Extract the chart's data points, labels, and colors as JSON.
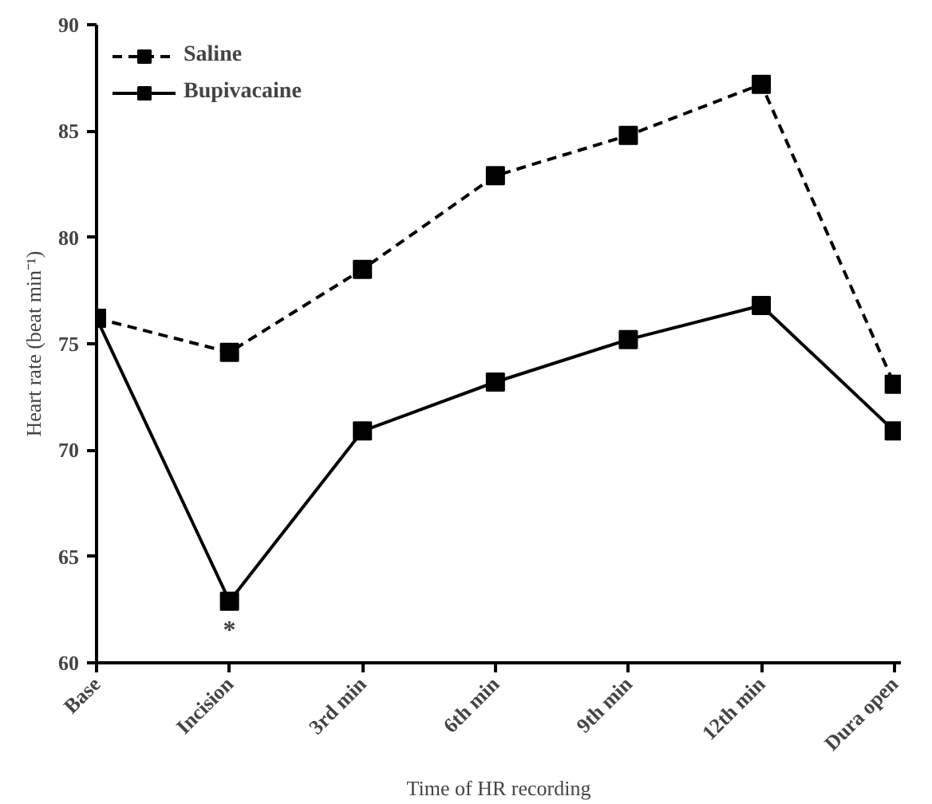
{
  "chart_data": {
    "type": "line",
    "xlabel": "Time of HR recording",
    "ylabel": "Heart rate (beat min⁻¹)",
    "categories": [
      "Base",
      "Incision",
      "3rd min",
      "6th min",
      "9th min",
      "12th min",
      "Dura open"
    ],
    "series": [
      {
        "name": "Saline",
        "color": "#000000",
        "line_style": "dashed",
        "values": [
          76.2,
          74.6,
          78.5,
          82.9,
          84.8,
          87.2,
          73.1
        ]
      },
      {
        "name": "Bupivacaine",
        "color": "#000000",
        "line_style": "solid",
        "values": [
          76.2,
          62.9,
          70.9,
          73.2,
          75.2,
          76.8,
          70.9
        ]
      }
    ],
    "marker": "square",
    "ylim": [
      60,
      90
    ],
    "yticks": [
      60,
      65,
      70,
      75,
      80,
      85,
      90
    ],
    "grid": false,
    "legend": "top left",
    "annotations": [
      {
        "text": "*",
        "x": "Incision",
        "y": 62.9
      }
    ]
  }
}
